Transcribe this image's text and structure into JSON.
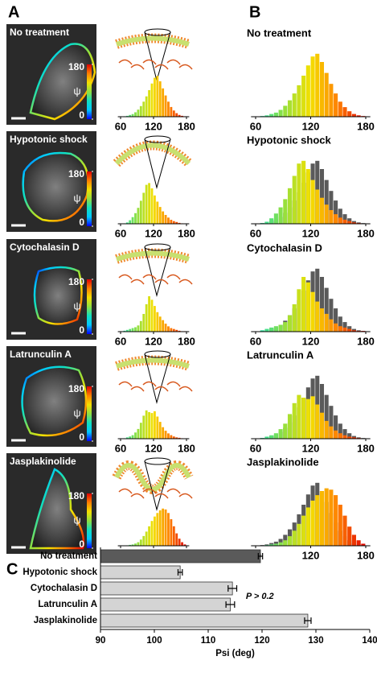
{
  "panel_labels": [
    "A",
    "B",
    "C"
  ],
  "colorbar": {
    "ticks": [
      0,
      180
    ],
    "label": "ψ"
  },
  "colorscale": [
    "#0000ff",
    "#00c8ff",
    "#10e0c0",
    "#90e040",
    "#f4e000",
    "#ff8000",
    "#e00000"
  ],
  "reference_color": "#5a5a5a",
  "chart_data": [
    {
      "type": "histogram",
      "title": "No treatment",
      "bins": [
        60,
        65,
        70,
        75,
        80,
        85,
        90,
        95,
        100,
        105,
        110,
        115,
        120,
        125,
        130,
        135,
        140,
        145,
        150,
        155,
        160,
        165,
        170,
        175,
        180
      ],
      "counts": [
        0,
        1,
        2,
        4,
        6,
        10,
        16,
        24,
        34,
        46,
        60,
        75,
        88,
        92,
        80,
        64,
        48,
        34,
        22,
        14,
        8,
        4,
        2,
        1
      ],
      "xlim": [
        55,
        185
      ],
      "xticks": [
        60,
        120,
        180
      ],
      "ylim": [
        0,
        100
      ]
    },
    {
      "type": "histogram",
      "title": "Hypotonic shock",
      "bins": [
        60,
        65,
        70,
        75,
        80,
        85,
        90,
        95,
        100,
        105,
        110,
        115,
        120,
        125,
        130,
        135,
        140,
        145,
        150,
        155,
        160,
        165,
        170,
        175,
        180
      ],
      "counts": [
        0,
        1,
        3,
        8,
        15,
        24,
        36,
        52,
        70,
        88,
        92,
        80,
        64,
        50,
        38,
        28,
        20,
        14,
        9,
        6,
        4,
        2,
        1,
        0
      ],
      "xlim": [
        55,
        185
      ],
      "xticks": [
        60,
        120,
        180
      ],
      "ylim": [
        0,
        100
      ]
    },
    {
      "type": "histogram",
      "title": "Cytochalasin D",
      "bins": [
        60,
        65,
        70,
        75,
        80,
        85,
        90,
        95,
        100,
        105,
        110,
        115,
        120,
        125,
        130,
        135,
        140,
        145,
        150,
        155,
        160,
        165,
        170,
        175,
        180
      ],
      "counts": [
        0,
        2,
        4,
        6,
        8,
        10,
        14,
        24,
        40,
        62,
        80,
        72,
        58,
        44,
        34,
        26,
        18,
        12,
        8,
        6,
        4,
        2,
        1,
        1
      ],
      "xlim": [
        55,
        185
      ],
      "xticks": [
        60,
        120,
        180
      ],
      "ylim": [
        0,
        100
      ]
    },
    {
      "type": "histogram",
      "title": "Latrunculin A",
      "bins": [
        60,
        65,
        70,
        75,
        80,
        85,
        90,
        95,
        100,
        105,
        110,
        115,
        120,
        125,
        130,
        135,
        140,
        145,
        150,
        155,
        160,
        165,
        170,
        175,
        180
      ],
      "counts": [
        0,
        1,
        3,
        5,
        8,
        14,
        22,
        36,
        52,
        64,
        60,
        58,
        62,
        50,
        38,
        26,
        18,
        12,
        8,
        5,
        3,
        2,
        1,
        0
      ],
      "xlim": [
        55,
        185
      ],
      "xticks": [
        60,
        120,
        180
      ],
      "ylim": [
        0,
        100
      ]
    },
    {
      "type": "histogram",
      "title": "Jasplakinolide",
      "bins": [
        60,
        65,
        70,
        75,
        80,
        85,
        90,
        95,
        100,
        105,
        110,
        115,
        120,
        125,
        130,
        135,
        140,
        145,
        150,
        155,
        160,
        165,
        170,
        175,
        180
      ],
      "counts": [
        0,
        0,
        1,
        2,
        3,
        5,
        8,
        14,
        22,
        32,
        44,
        56,
        66,
        74,
        80,
        84,
        82,
        74,
        60,
        44,
        28,
        16,
        8,
        3
      ],
      "xlim": [
        55,
        185
      ],
      "xticks": [
        60,
        120,
        180
      ],
      "ylim": [
        0,
        100
      ]
    },
    {
      "type": "bar",
      "orientation": "horizontal",
      "categories": [
        "No treatment",
        "Hypotonic shock",
        "Cytochalasin D",
        "Latrunculin A",
        "Jasplakinolide"
      ],
      "values": [
        119.7,
        104.8,
        114.5,
        114.1,
        128.5
      ],
      "errors": [
        0.4,
        0.4,
        0.8,
        0.8,
        0.6
      ],
      "colors": [
        "#5a5a5a",
        "#d4d4d4",
        "#d4d4d4",
        "#d4d4d4",
        "#d4d4d4"
      ],
      "xlim": [
        90,
        140
      ],
      "xticks": [
        90,
        100,
        110,
        120,
        130,
        140
      ],
      "xlabel": "Psi (deg)",
      "annotation": "P > 0.2"
    }
  ]
}
